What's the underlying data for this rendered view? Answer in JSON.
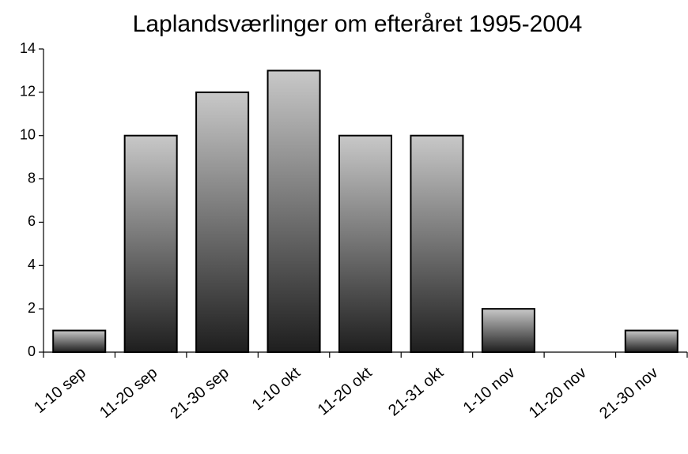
{
  "chart_data": {
    "type": "bar",
    "title": "Laplandsværlinger om efteråret 1995-2004",
    "categories": [
      "1-10 sep",
      "11-20 sep",
      "21-30 sep",
      "1-10 okt",
      "11-20 okt",
      "21-31 okt",
      "1-10 nov",
      "11-20 nov",
      "21-30 nov"
    ],
    "values": [
      1,
      10,
      12,
      13,
      10,
      10,
      2,
      0,
      1
    ],
    "gradient": [
      "#c8c8c8",
      "#1e1e1e"
    ],
    "ylim": [
      0,
      14
    ],
    "yticks": [
      0,
      2,
      4,
      6,
      8,
      10,
      12,
      14
    ],
    "grid": false
  }
}
